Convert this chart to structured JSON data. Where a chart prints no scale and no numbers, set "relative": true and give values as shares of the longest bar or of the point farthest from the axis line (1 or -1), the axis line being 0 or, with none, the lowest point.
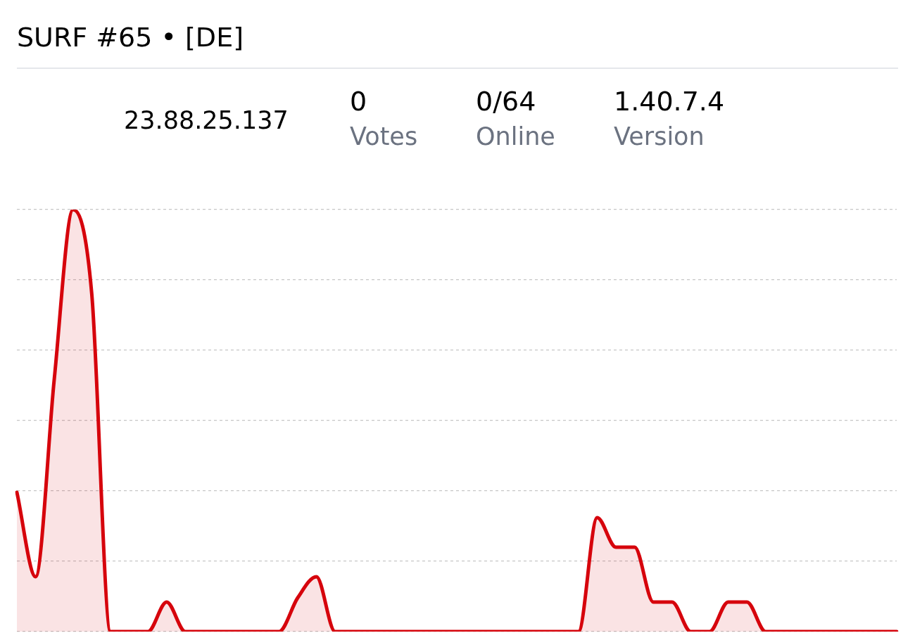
{
  "chart_data": {
    "type": "area",
    "title": "SURF #65 • [DE]",
    "annotations": [
      "23.88.25.137",
      "0",
      "Votes",
      "0/64",
      "Online",
      "1.40.7.4",
      "Version"
    ],
    "categories": [
      null,
      null,
      null,
      null,
      null,
      null,
      null,
      null,
      null,
      null,
      null,
      null,
      null,
      null,
      null,
      null,
      null,
      null,
      null,
      null,
      null,
      null,
      null,
      null,
      null,
      null,
      null,
      null,
      null,
      null,
      null,
      null,
      null,
      null,
      null,
      null,
      null,
      null,
      null,
      null,
      null,
      null,
      null,
      null,
      null,
      null,
      null,
      null
    ],
    "values": [
      0.33,
      0.13,
      0.6,
      1,
      0.8,
      0,
      0,
      0,
      0.07,
      0,
      0,
      0,
      0,
      0,
      0,
      0.08,
      0.13,
      0,
      0,
      0,
      0,
      0,
      0,
      0,
      0,
      0,
      0,
      0,
      0,
      0,
      0,
      0.27,
      0.2,
      0.2,
      0.07,
      0.07,
      0,
      0,
      0.07,
      0.07,
      0,
      0,
      0,
      0,
      0,
      0,
      0,
      0
    ],
    "color": "#d6040c",
    "relative": true,
    "grid": "y",
    "marker": "none"
  }
}
